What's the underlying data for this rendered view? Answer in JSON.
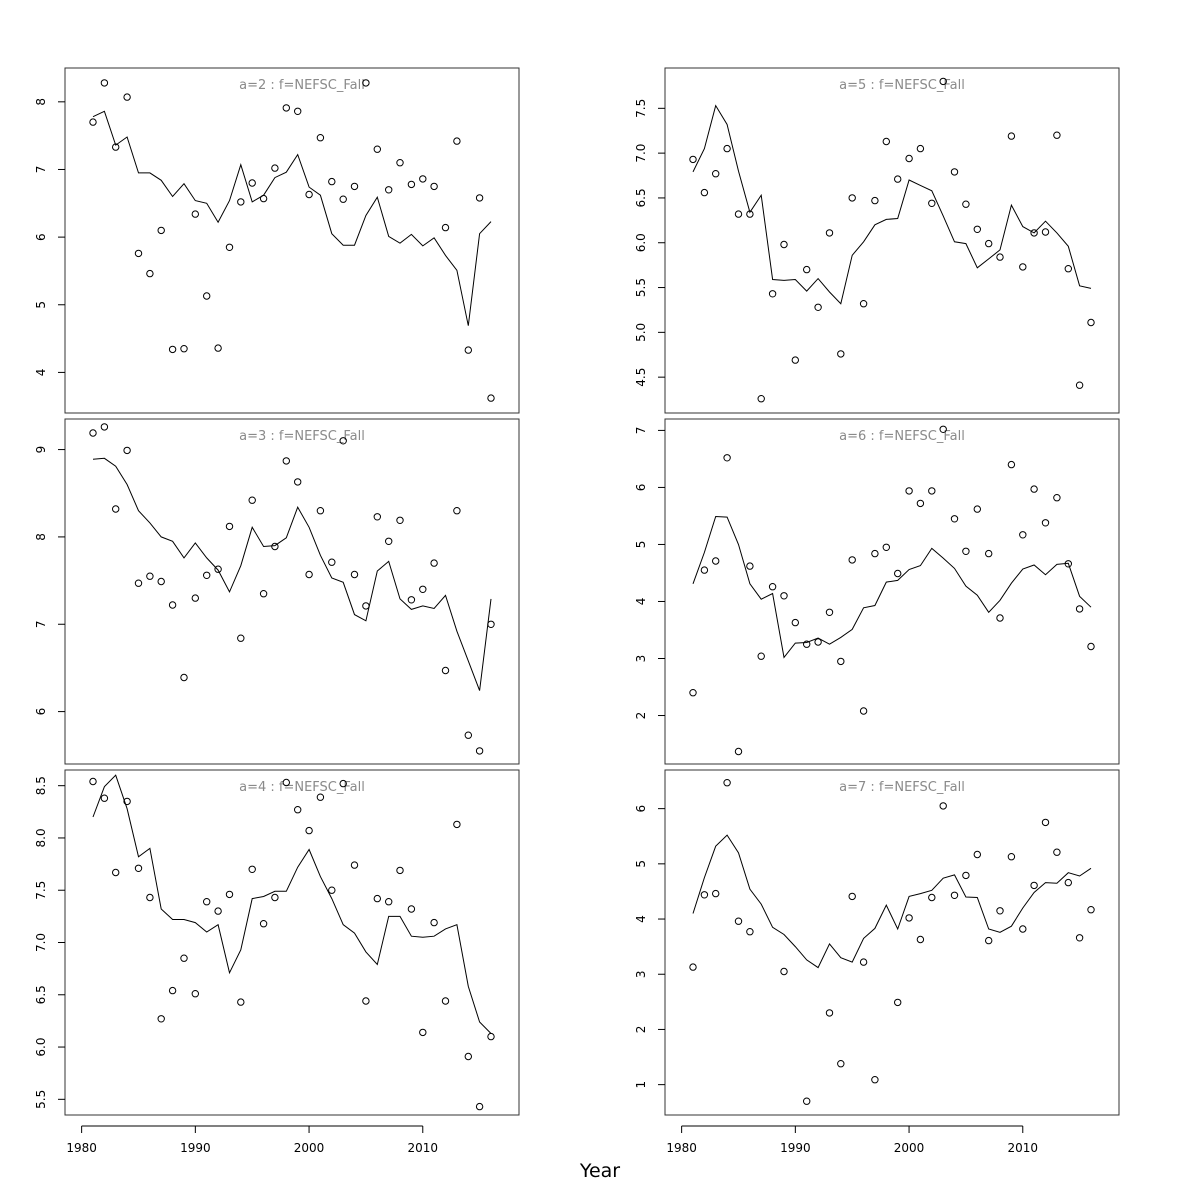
{
  "xlabel": "Year",
  "chart_data": [
    {
      "type": "scatter",
      "title": "a=2 : f=NEFSC_Fall",
      "x_ticks": [
        1980,
        1990,
        2000,
        2010
      ],
      "xlim": [
        1980,
        2017
      ],
      "y_ticks": [
        "4",
        "5",
        "6",
        "7",
        "8"
      ],
      "ylim": [
        3.4,
        8.5
      ],
      "x": [
        1981,
        1982,
        1983,
        1984,
        1985,
        1986,
        1987,
        1988,
        1989,
        1990,
        1991,
        1992,
        1993,
        1994,
        1995,
        1996,
        1997,
        1998,
        1999,
        2000,
        2001,
        2002,
        2003,
        2004,
        2005,
        2006,
        2007,
        2008,
        2009,
        2010,
        2011,
        2012,
        2013,
        2014,
        2015,
        2016
      ],
      "series": [
        {
          "role": "observed",
          "style": "points",
          "values": [
            7.7,
            8.28,
            7.33,
            8.07,
            5.76,
            5.46,
            6.1,
            4.34,
            4.35,
            6.34,
            5.13,
            4.36,
            5.85,
            6.52,
            6.8,
            6.57,
            7.02,
            7.91,
            7.86,
            6.63,
            7.47,
            6.82,
            6.56,
            6.75,
            8.28,
            7.3,
            6.7,
            7.1,
            6.78,
            6.86,
            6.75,
            6.14,
            7.42,
            4.33,
            6.58,
            3.62
          ]
        },
        {
          "role": "fitted",
          "style": "line",
          "values": [
            7.78,
            7.86,
            7.36,
            7.48,
            6.95,
            6.95,
            6.84,
            6.6,
            6.79,
            6.54,
            6.5,
            6.22,
            6.54,
            7.07,
            6.52,
            6.62,
            6.88,
            6.96,
            7.22,
            6.74,
            6.62,
            6.05,
            5.88,
            5.88,
            6.32,
            6.59,
            6.01,
            5.91,
            6.04,
            5.87,
            5.99,
            5.73,
            5.51,
            4.69,
            6.05,
            6.23
          ]
        }
      ]
    },
    {
      "type": "scatter",
      "title": "a=5 : f=NEFSC_Fall",
      "x_ticks": [
        1980,
        1990,
        2000,
        2010
      ],
      "xlim": [
        1980,
        2017
      ],
      "y_ticks": [
        "4.5",
        "5.0",
        "5.5",
        "6.0",
        "6.5",
        "7.0",
        "7.5"
      ],
      "ylim": [
        4.1,
        7.95
      ],
      "x": [
        1981,
        1982,
        1983,
        1984,
        1985,
        1986,
        1987,
        1988,
        1989,
        1990,
        1991,
        1992,
        1993,
        1994,
        1995,
        1996,
        1997,
        1998,
        1999,
        2000,
        2001,
        2002,
        2003,
        2004,
        2005,
        2006,
        2007,
        2008,
        2009,
        2010,
        2011,
        2012,
        2013,
        2014,
        2015,
        2016
      ],
      "series": [
        {
          "role": "observed",
          "style": "points",
          "values": [
            6.93,
            6.56,
            6.77,
            7.05,
            6.32,
            6.32,
            4.26,
            5.43,
            5.98,
            4.69,
            5.7,
            5.28,
            6.11,
            4.76,
            6.5,
            5.32,
            6.47,
            7.13,
            6.71,
            6.94,
            7.05,
            6.44,
            7.8,
            6.79,
            6.43,
            6.15,
            5.99,
            5.84,
            7.19,
            5.73,
            6.11,
            6.12,
            7.2,
            5.71,
            4.41,
            5.11
          ]
        },
        {
          "role": "fitted",
          "style": "line",
          "values": [
            6.79,
            7.05,
            7.53,
            7.32,
            6.8,
            6.34,
            6.53,
            5.59,
            5.58,
            5.59,
            5.46,
            5.6,
            5.45,
            5.32,
            5.86,
            6.01,
            6.2,
            6.26,
            6.27,
            6.7,
            6.64,
            6.58,
            6.3,
            6.01,
            5.99,
            5.72,
            5.82,
            5.92,
            6.42,
            6.18,
            6.11,
            6.24,
            6.11,
            5.96,
            5.52,
            5.49
          ]
        }
      ]
    },
    {
      "type": "scatter",
      "title": "a=3 : f=NEFSC_Fall",
      "x_ticks": [
        1980,
        1990,
        2000,
        2010
      ],
      "xlim": [
        1980,
        2017
      ],
      "y_ticks": [
        "6",
        "7",
        "8",
        "9"
      ],
      "ylim": [
        5.4,
        9.35
      ],
      "x": [
        1981,
        1982,
        1983,
        1984,
        1985,
        1986,
        1987,
        1988,
        1989,
        1990,
        1991,
        1992,
        1993,
        1994,
        1995,
        1996,
        1997,
        1998,
        1999,
        2000,
        2001,
        2002,
        2003,
        2004,
        2005,
        2006,
        2007,
        2008,
        2009,
        2010,
        2011,
        2012,
        2013,
        2014,
        2015,
        2016
      ],
      "series": [
        {
          "role": "observed",
          "style": "points",
          "values": [
            9.19,
            9.26,
            8.32,
            8.99,
            7.47,
            7.55,
            7.49,
            7.22,
            6.39,
            7.3,
            7.56,
            7.63,
            8.12,
            6.84,
            8.42,
            7.35,
            7.89,
            8.87,
            8.63,
            7.57,
            8.3,
            7.71,
            9.1,
            7.57,
            7.21,
            8.23,
            7.95,
            8.19,
            7.28,
            7.4,
            7.7,
            6.47,
            8.3,
            5.73,
            5.55,
            7.0
          ]
        },
        {
          "role": "fitted",
          "style": "line",
          "values": [
            8.89,
            8.9,
            8.81,
            8.6,
            8.3,
            8.16,
            8.0,
            7.95,
            7.76,
            7.93,
            7.76,
            7.62,
            7.37,
            7.67,
            8.11,
            7.89,
            7.9,
            7.99,
            8.34,
            8.11,
            7.79,
            7.53,
            7.48,
            7.11,
            7.04,
            7.61,
            7.72,
            7.29,
            7.17,
            7.21,
            7.18,
            7.33,
            6.92,
            6.58,
            6.24,
            7.29
          ]
        }
      ]
    },
    {
      "type": "scatter",
      "title": "a=6 : f=NEFSC_Fall",
      "x_ticks": [
        1980,
        1990,
        2000,
        2010
      ],
      "xlim": [
        1980,
        2017
      ],
      "y_ticks": [
        "2",
        "3",
        "4",
        "5",
        "6",
        "7"
      ],
      "ylim": [
        1.15,
        7.2
      ],
      "x": [
        1981,
        1982,
        1983,
        1984,
        1985,
        1986,
        1987,
        1988,
        1989,
        1990,
        1991,
        1992,
        1993,
        1994,
        1995,
        1996,
        1997,
        1998,
        1999,
        2000,
        2001,
        2002,
        2003,
        2004,
        2005,
        2006,
        2007,
        2008,
        2009,
        2010,
        2011,
        2012,
        2013,
        2014,
        2015,
        2016
      ],
      "series": [
        {
          "role": "observed",
          "style": "points",
          "values": [
            2.4,
            4.55,
            4.71,
            6.52,
            1.37,
            4.62,
            3.04,
            4.26,
            4.1,
            3.63,
            3.25,
            3.29,
            3.81,
            2.95,
            4.73,
            2.08,
            4.84,
            4.95,
            4.49,
            5.94,
            5.72,
            5.94,
            7.02,
            5.45,
            4.88,
            5.62,
            4.84,
            3.71,
            6.4,
            5.17,
            5.97,
            5.38,
            5.82,
            4.66,
            3.87,
            3.21
          ]
        },
        {
          "role": "fitted",
          "style": "line",
          "values": [
            4.31,
            4.86,
            5.49,
            5.48,
            5.0,
            4.31,
            4.04,
            4.14,
            3.02,
            3.27,
            3.28,
            3.36,
            3.25,
            3.37,
            3.51,
            3.89,
            3.93,
            4.34,
            4.37,
            4.56,
            4.63,
            4.93,
            4.76,
            4.58,
            4.27,
            4.11,
            3.81,
            4.02,
            4.32,
            4.57,
            4.64,
            4.47,
            4.65,
            4.67,
            4.09,
            3.9
          ]
        }
      ]
    },
    {
      "type": "scatter",
      "title": "a=4 : f=NEFSC_Fall",
      "x_ticks": [
        1980,
        1990,
        2000,
        2010
      ],
      "xlim": [
        1980,
        2017
      ],
      "y_ticks": [
        "5.5",
        "6.0",
        "6.5",
        "7.0",
        "7.5",
        "8.0",
        "8.5"
      ],
      "ylim": [
        5.35,
        8.65
      ],
      "x": [
        1981,
        1982,
        1983,
        1984,
        1985,
        1986,
        1987,
        1988,
        1989,
        1990,
        1991,
        1992,
        1993,
        1994,
        1995,
        1996,
        1997,
        1998,
        1999,
        2000,
        2001,
        2002,
        2003,
        2004,
        2005,
        2006,
        2007,
        2008,
        2009,
        2010,
        2011,
        2012,
        2013,
        2014,
        2015,
        2016
      ],
      "series": [
        {
          "role": "observed",
          "style": "points",
          "values": [
            8.54,
            8.38,
            7.67,
            8.35,
            7.71,
            7.43,
            6.27,
            6.54,
            6.85,
            6.51,
            7.39,
            7.3,
            7.46,
            6.43,
            7.7,
            7.18,
            7.43,
            8.53,
            8.27,
            8.07,
            8.39,
            7.5,
            8.52,
            7.74,
            6.44,
            7.42,
            7.39,
            7.69,
            7.32,
            6.14,
            7.19,
            6.44,
            8.13,
            5.91,
            5.43,
            6.1
          ]
        },
        {
          "role": "fitted",
          "style": "line",
          "values": [
            8.2,
            8.49,
            8.6,
            8.28,
            7.82,
            7.9,
            7.32,
            7.22,
            7.22,
            7.19,
            7.1,
            7.17,
            6.71,
            6.93,
            7.42,
            7.44,
            7.49,
            7.49,
            7.72,
            7.89,
            7.63,
            7.42,
            7.17,
            7.09,
            6.91,
            6.79,
            7.25,
            7.25,
            7.06,
            7.05,
            7.06,
            7.13,
            7.17,
            6.58,
            6.24,
            6.13
          ]
        }
      ]
    },
    {
      "type": "scatter",
      "title": "a=7 : f=NEFSC_Fall",
      "x_ticks": [
        1980,
        1990,
        2000,
        2010
      ],
      "xlim": [
        1980,
        2017
      ],
      "y_ticks": [
        "1",
        "2",
        "3",
        "4",
        "5",
        "6"
      ],
      "ylim": [
        0.45,
        6.7
      ],
      "x": [
        1981,
        1982,
        1983,
        1984,
        1985,
        1986,
        1987,
        1988,
        1989,
        1990,
        1991,
        1992,
        1993,
        1994,
        1995,
        1996,
        1997,
        1998,
        1999,
        2000,
        2001,
        2002,
        2003,
        2004,
        2005,
        2006,
        2007,
        2008,
        2009,
        2010,
        2011,
        2012,
        2013,
        2014,
        2015,
        2016
      ],
      "series": [
        {
          "role": "observed",
          "style": "points",
          "values": [
            3.13,
            4.44,
            4.46,
            6.47,
            3.96,
            3.77,
            null,
            null,
            3.05,
            null,
            0.7,
            null,
            2.3,
            1.38,
            4.41,
            3.22,
            1.09,
            null,
            2.49,
            4.02,
            3.63,
            4.39,
            6.05,
            4.43,
            4.79,
            5.17,
            3.61,
            4.15,
            5.13,
            3.82,
            4.61,
            5.75,
            5.21,
            4.66,
            3.66,
            4.17
          ]
        },
        {
          "role": "fitted",
          "style": "line",
          "values": [
            4.1,
            4.75,
            5.32,
            5.52,
            5.2,
            4.54,
            4.27,
            3.85,
            3.72,
            3.5,
            3.26,
            3.12,
            3.55,
            3.3,
            3.22,
            3.65,
            3.83,
            4.25,
            3.82,
            4.41,
            4.46,
            4.52,
            4.74,
            4.8,
            4.4,
            4.39,
            3.82,
            3.76,
            3.87,
            4.2,
            4.48,
            4.66,
            4.65,
            4.84,
            4.78,
            4.92
          ]
        }
      ]
    }
  ]
}
